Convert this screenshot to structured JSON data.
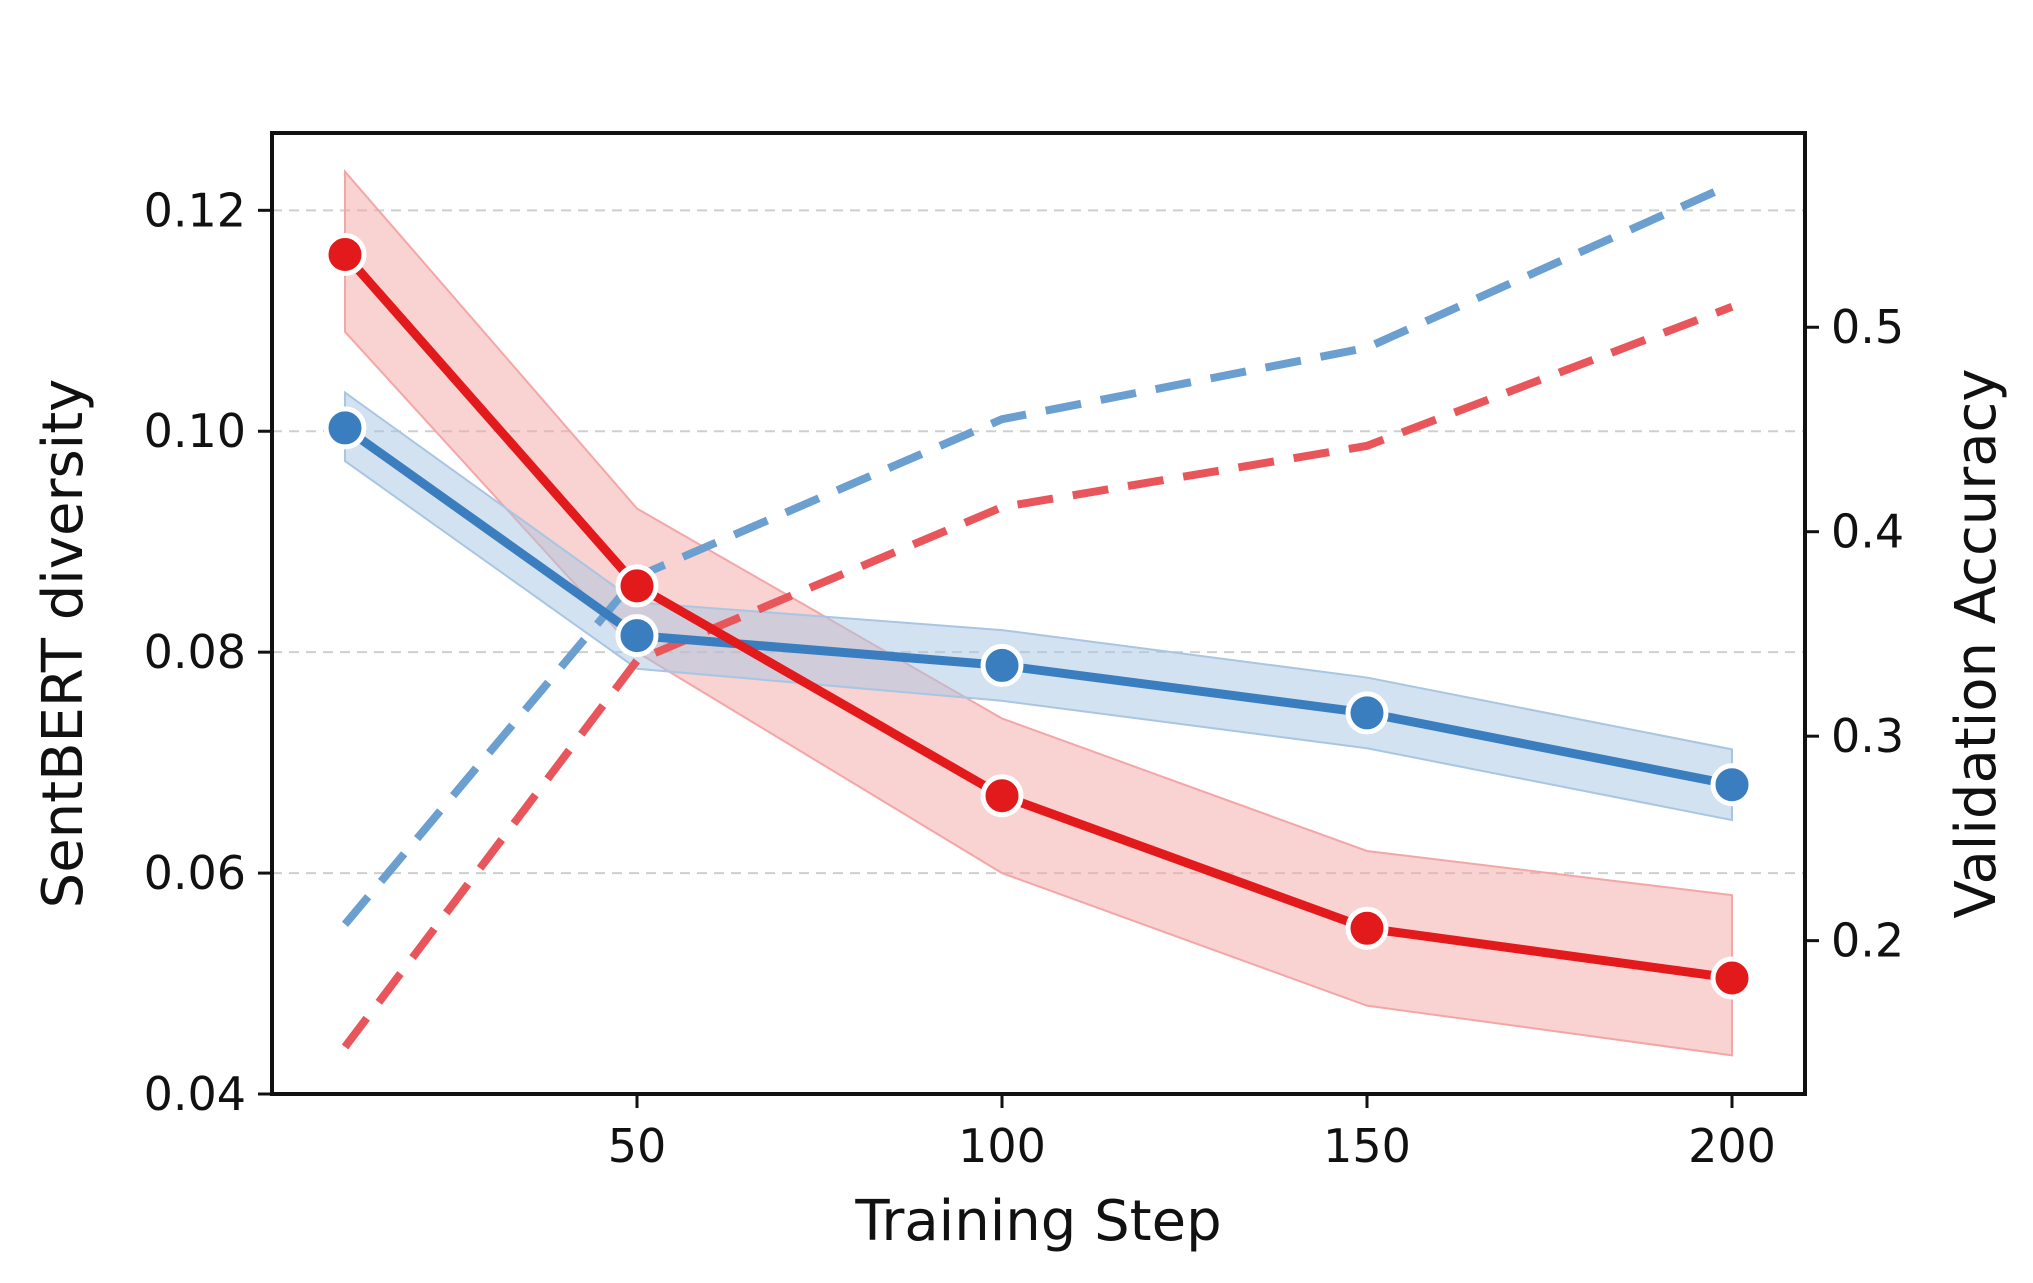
{
  "chart_data": {
    "type": "line",
    "title": "",
    "xlabel": "Training Step",
    "ylabel_left": "SentBERT diversity",
    "ylabel_right": "Validation Accuracy",
    "x": [
      10,
      50,
      100,
      150,
      200
    ],
    "xlim": [
      0,
      210
    ],
    "ylim_left": [
      0.04,
      0.127
    ],
    "ylim_right": [
      0.125,
      0.595
    ],
    "x_ticks": [
      50,
      100,
      150,
      200
    ],
    "x_tick_labels": [
      "50",
      "100",
      "150",
      "200"
    ],
    "y_left_ticks": [
      0.04,
      0.06,
      0.08,
      0.1,
      0.12
    ],
    "y_left_tick_labels": [
      "0.04",
      "0.06",
      "0.08",
      "0.10",
      "0.12"
    ],
    "y_right_ticks": [
      0.2,
      0.3,
      0.4,
      0.5
    ],
    "y_right_tick_labels": [
      "0.2",
      "0.3",
      "0.4",
      "0.5"
    ],
    "grid": "horizontal-dashed",
    "colors": {
      "red": "#e31a1c",
      "red_dashed": "#e8555a",
      "blue": "#3a7ebf",
      "blue_dashed": "#6a9fcf",
      "red_band": "#f4a6a6",
      "blue_band": "#a8c6e2"
    },
    "series": [
      {
        "name": "red diversity",
        "axis": "left",
        "style": "solid",
        "color": "red",
        "values": [
          0.116,
          0.086,
          0.067,
          0.055,
          0.0505
        ],
        "upper": [
          0.1235,
          0.093,
          0.074,
          0.062,
          0.058
        ],
        "lower": [
          0.109,
          0.08,
          0.06,
          0.048,
          0.0435
        ]
      },
      {
        "name": "blue diversity",
        "axis": "left",
        "style": "solid",
        "color": "blue",
        "values": [
          0.1003,
          0.0815,
          0.0788,
          0.0745,
          0.068
        ],
        "upper": [
          0.1035,
          0.0845,
          0.082,
          0.0777,
          0.0712
        ],
        "lower": [
          0.0973,
          0.0785,
          0.0756,
          0.0713,
          0.0648
        ]
      },
      {
        "name": "blue validation accuracy",
        "axis": "right",
        "style": "dashed",
        "color": "blue_dashed",
        "values": [
          0.208,
          0.378,
          0.455,
          0.49,
          0.57
        ]
      },
      {
        "name": "red validation accuracy",
        "axis": "right",
        "style": "dashed",
        "color": "red_dashed",
        "values": [
          0.148,
          0.337,
          0.412,
          0.442,
          0.51
        ]
      }
    ]
  }
}
